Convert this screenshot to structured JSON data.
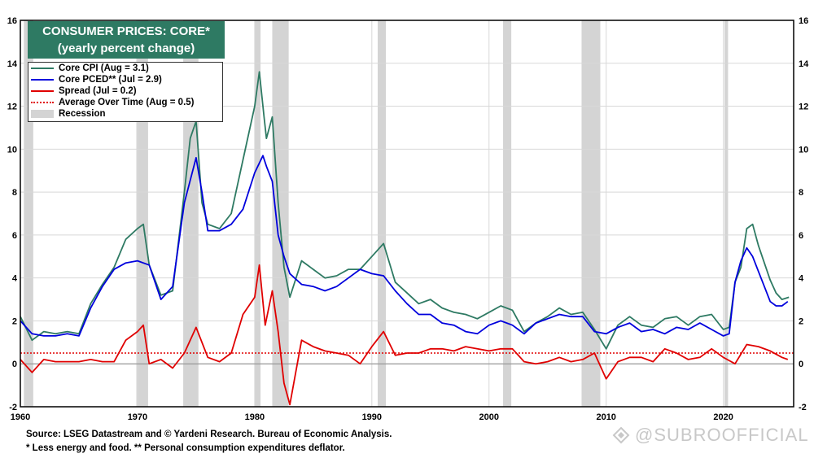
{
  "chart_data": {
    "type": "line",
    "title": "CONSUMER PRICES: CORE*",
    "subtitle": "(yearly percent change)",
    "xlim": [
      1960,
      2026
    ],
    "ylim": [
      -2,
      16
    ],
    "x_ticks": [
      "1960",
      "1970",
      "1980",
      "1990",
      "2000",
      "2010",
      "2020"
    ],
    "y_ticks": [
      "-2",
      "0",
      "2",
      "4",
      "6",
      "8",
      "10",
      "12",
      "14",
      "16"
    ],
    "grid": true,
    "legend_position": "top-left",
    "legend": {
      "core_cpi": "Core CPI (Aug = 3.1)",
      "core_pced": "Core PCED** (Jul = 2.9)",
      "spread": "Spread (Jul = 0.2)",
      "average": "Average Over Time (Aug = 0.5)",
      "recession": "Recession"
    },
    "colors": {
      "core_cpi": "#2e7a63",
      "core_pced": "#0000dd",
      "spread": "#e00000",
      "average": "#e00000",
      "recession": "#d4d4d4",
      "title_bg": "#2e7a63"
    },
    "average_spread": 0.5,
    "recessions": [
      [
        1960.3,
        1961.1
      ],
      [
        1969.9,
        1970.9
      ],
      [
        1973.9,
        1975.2
      ],
      [
        1980.0,
        1980.5
      ],
      [
        1981.5,
        1982.9
      ],
      [
        1990.5,
        1991.2
      ],
      [
        2001.2,
        2001.9
      ],
      [
        2007.9,
        2009.5
      ],
      [
        2020.1,
        2020.4
      ]
    ],
    "series": [
      {
        "name": "Core CPI",
        "x": [
          1960,
          1961,
          1962,
          1963,
          1964,
          1965,
          1966,
          1967,
          1968,
          1969,
          1970,
          1970.5,
          1971,
          1972,
          1973,
          1974,
          1974.5,
          1975,
          1975.5,
          1976,
          1977,
          1978,
          1979,
          1980,
          1980.4,
          1980.8,
          1981,
          1981.5,
          1982,
          1982.5,
          1983,
          1984,
          1985,
          1986,
          1987,
          1988,
          1989,
          1990,
          1991,
          1992,
          1993,
          1994,
          1995,
          1996,
          1997,
          1998,
          1999,
          2000,
          2001,
          2002,
          2003,
          2004,
          2005,
          2006,
          2007,
          2008,
          2009,
          2010,
          2011,
          2012,
          2013,
          2014,
          2015,
          2016,
          2017,
          2018,
          2019,
          2020,
          2020.5,
          2021,
          2021.5,
          2022,
          2022.5,
          2023,
          2023.5,
          2024,
          2024.5,
          2025,
          2025.6
        ],
        "values": [
          2.2,
          1.1,
          1.5,
          1.4,
          1.5,
          1.4,
          2.8,
          3.7,
          4.5,
          5.8,
          6.3,
          6.5,
          4.6,
          3.2,
          3.4,
          8.0,
          10.5,
          11.3,
          7.5,
          6.5,
          6.3,
          7.0,
          9.5,
          12.0,
          13.6,
          11.5,
          10.5,
          11.5,
          7.5,
          4.5,
          3.1,
          4.8,
          4.4,
          4.0,
          4.1,
          4.4,
          4.4,
          5.0,
          5.6,
          3.8,
          3.3,
          2.8,
          3.0,
          2.6,
          2.4,
          2.3,
          2.1,
          2.4,
          2.7,
          2.5,
          1.5,
          1.9,
          2.2,
          2.6,
          2.3,
          2.4,
          1.6,
          0.7,
          1.8,
          2.2,
          1.8,
          1.7,
          2.1,
          2.2,
          1.8,
          2.2,
          2.3,
          1.6,
          1.7,
          3.8,
          4.5,
          6.3,
          6.5,
          5.5,
          4.7,
          3.9,
          3.3,
          3.0,
          3.1
        ]
      },
      {
        "name": "Core PCED",
        "x": [
          1960,
          1961,
          1962,
          1963,
          1964,
          1965,
          1966,
          1967,
          1968,
          1969,
          1970,
          1971,
          1972,
          1973,
          1974,
          1975,
          1975.5,
          1976,
          1977,
          1978,
          1979,
          1980,
          1980.7,
          1981,
          1981.5,
          1982,
          1982.5,
          1983,
          1984,
          1985,
          1986,
          1987,
          1988,
          1989,
          1990,
          1991,
          1992,
          1993,
          1994,
          1995,
          1996,
          1997,
          1998,
          1999,
          2000,
          2001,
          2002,
          2003,
          2004,
          2005,
          2006,
          2007,
          2008,
          2009,
          2010,
          2011,
          2012,
          2013,
          2014,
          2015,
          2016,
          2017,
          2018,
          2019,
          2020,
          2020.5,
          2021,
          2021.5,
          2022,
          2022.5,
          2023,
          2023.5,
          2024,
          2024.5,
          2025,
          2025.5
        ],
        "values": [
          2.0,
          1.4,
          1.3,
          1.3,
          1.4,
          1.3,
          2.6,
          3.6,
          4.4,
          4.7,
          4.8,
          4.6,
          3.0,
          3.6,
          7.5,
          9.6,
          8.0,
          6.2,
          6.2,
          6.5,
          7.2,
          8.9,
          9.7,
          9.2,
          8.5,
          6.0,
          5.0,
          4.2,
          3.7,
          3.6,
          3.4,
          3.6,
          4.0,
          4.4,
          4.2,
          4.1,
          3.4,
          2.8,
          2.3,
          2.3,
          1.9,
          1.8,
          1.5,
          1.4,
          1.8,
          2.0,
          1.8,
          1.4,
          1.9,
          2.1,
          2.3,
          2.2,
          2.2,
          1.5,
          1.4,
          1.7,
          1.9,
          1.5,
          1.6,
          1.4,
          1.7,
          1.6,
          1.9,
          1.6,
          1.3,
          1.4,
          3.8,
          4.8,
          5.4,
          5.0,
          4.3,
          3.6,
          2.9,
          2.7,
          2.7,
          2.9
        ]
      },
      {
        "name": "Spread",
        "x": [
          1960,
          1961,
          1962,
          1963,
          1964,
          1965,
          1966,
          1967,
          1968,
          1969,
          1970,
          1970.5,
          1971,
          1972,
          1973,
          1974,
          1975,
          1976,
          1977,
          1978,
          1979,
          1980,
          1980.4,
          1980.9,
          1981.5,
          1982,
          1982.5,
          1983,
          1984,
          1985,
          1986,
          1987,
          1988,
          1989,
          1990,
          1991,
          1992,
          1993,
          1994,
          1995,
          1996,
          1997,
          1998,
          1999,
          2000,
          2001,
          2002,
          2003,
          2004,
          2005,
          2006,
          2007,
          2008,
          2009,
          2010,
          2011,
          2012,
          2013,
          2014,
          2015,
          2016,
          2017,
          2018,
          2019,
          2020,
          2021,
          2022,
          2023,
          2024,
          2025,
          2025.5
        ],
        "values": [
          0.2,
          -0.4,
          0.2,
          0.1,
          0.1,
          0.1,
          0.2,
          0.1,
          0.1,
          1.1,
          1.5,
          1.8,
          0.0,
          0.2,
          -0.2,
          0.5,
          1.7,
          0.3,
          0.1,
          0.5,
          2.3,
          3.1,
          4.6,
          1.8,
          3.4,
          1.5,
          -0.9,
          -1.9,
          1.1,
          0.8,
          0.6,
          0.5,
          0.4,
          0.0,
          0.8,
          1.5,
          0.4,
          0.5,
          0.5,
          0.7,
          0.7,
          0.6,
          0.8,
          0.7,
          0.6,
          0.7,
          0.7,
          0.1,
          0.0,
          0.1,
          0.3,
          0.1,
          0.2,
          0.5,
          -0.7,
          0.1,
          0.3,
          0.3,
          0.1,
          0.7,
          0.5,
          0.2,
          0.3,
          0.7,
          0.3,
          0.0,
          0.9,
          0.8,
          0.6,
          0.3,
          0.2
        ]
      }
    ]
  },
  "footer": {
    "source": "Source: LSEG Datastream and © Yardeni Research. Bureau of Economic Analysis.",
    "notes": "* Less energy and food.  ** Personal consumption expenditures deflator."
  },
  "watermark": {
    "text": "@SUBROOFFICIAL"
  }
}
